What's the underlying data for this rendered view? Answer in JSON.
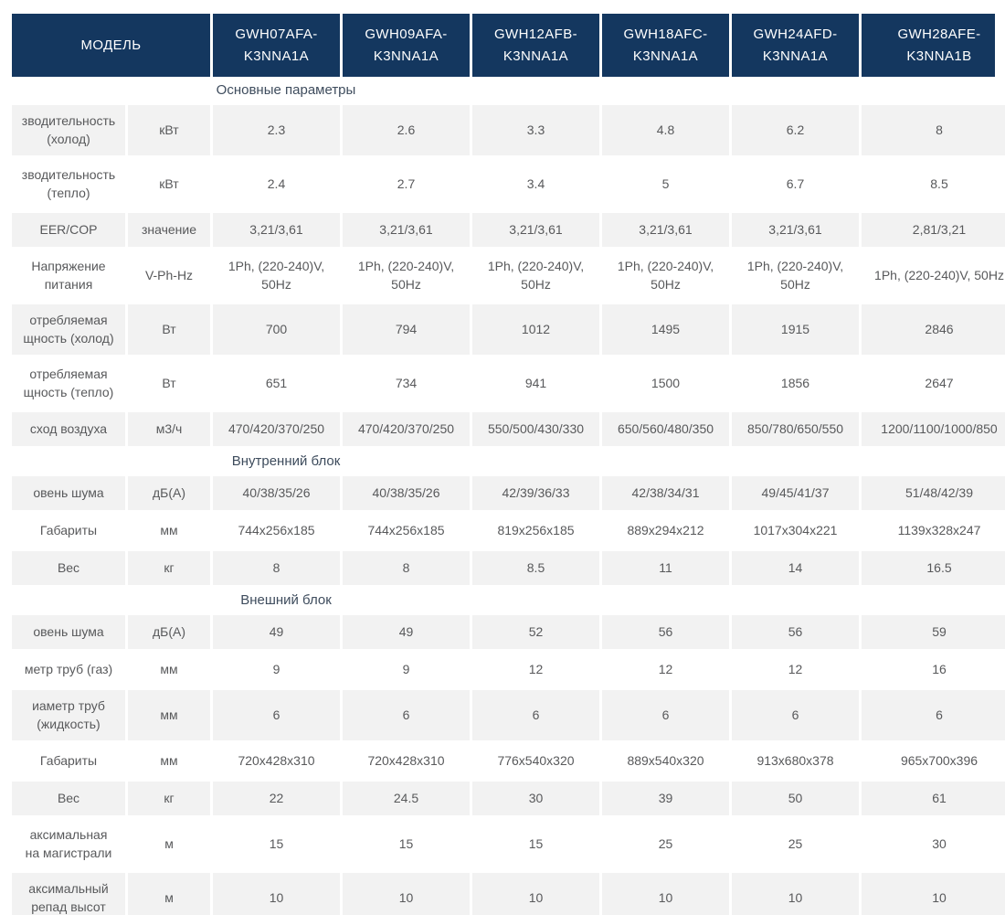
{
  "colors": {
    "header_bg": "#14375f",
    "header_text": "#ffffff",
    "row_shade": "#f2f2f2",
    "body_text": "#58595b",
    "section_text": "#3e4c5d"
  },
  "table": {
    "header": {
      "model_label": "МОДЕЛЬ",
      "models": [
        "GWH07AFA-\nK3NNA1A",
        "GWH09AFA-\nK3NNA1A",
        "GWH12AFB-\nK3NNA1A",
        "GWH18AFC-\nK3NNA1A",
        "GWH24AFD-\nK3NNA1A",
        "GWH28AFE-\nK3NNA1B"
      ]
    },
    "rows": [
      {
        "type": "section",
        "label": "Основные параметры"
      },
      {
        "type": "spec",
        "label": "зводительность\n(холод)",
        "unit": "кВт",
        "shaded": true,
        "two_line": true,
        "values": [
          "2.3",
          "2.6",
          "3.3",
          "4.8",
          "6.2",
          "8"
        ]
      },
      {
        "type": "spec",
        "label": "зводительность\n(тепло)",
        "unit": "кВт",
        "shaded": false,
        "two_line": true,
        "values": [
          "2.4",
          "2.7",
          "3.4",
          "5",
          "6.7",
          "8.5"
        ]
      },
      {
        "type": "spec",
        "label": "EER/COP",
        "unit": "значение",
        "shaded": true,
        "two_line": false,
        "values": [
          "3,21/3,61",
          "3,21/3,61",
          "3,21/3,61",
          "3,21/3,61",
          "3,21/3,61",
          "2,81/3,21"
        ]
      },
      {
        "type": "spec",
        "label": "Напряжение\nпитания",
        "unit": "V-Ph-Hz",
        "shaded": false,
        "two_line": true,
        "values": [
          "1Ph, (220-240)V, 50Hz",
          "1Ph, (220-240)V, 50Hz",
          "1Ph, (220-240)V, 50Hz",
          "1Ph, (220-240)V, 50Hz",
          "1Ph, (220-240)V, 50Hz",
          "1Ph, (220-240)V, 50Hz"
        ]
      },
      {
        "type": "spec",
        "label": "отребляемая\nщность (холод)",
        "unit": "Вт",
        "shaded": true,
        "two_line": true,
        "values": [
          "700",
          "794",
          "1012",
          "1495",
          "1915",
          "2846"
        ]
      },
      {
        "type": "spec",
        "label": "отребляемая\nщность (тепло)",
        "unit": "Вт",
        "shaded": false,
        "two_line": true,
        "values": [
          "651",
          "734",
          "941",
          "1500",
          "1856",
          "2647"
        ]
      },
      {
        "type": "spec",
        "label": "сход воздуха",
        "unit": "м3/ч",
        "shaded": true,
        "two_line": false,
        "values": [
          "470/420/370/250",
          "470/420/370/250",
          "550/500/430/330",
          "650/560/480/350",
          "850/780/650/550",
          "1200/1100/1000/850"
        ]
      },
      {
        "type": "section",
        "label": "Внутренний блок"
      },
      {
        "type": "spec",
        "label": "овень шума",
        "unit": "дБ(А)",
        "shaded": true,
        "two_line": false,
        "values": [
          "40/38/35/26",
          "40/38/35/26",
          "42/39/36/33",
          "42/38/34/31",
          "49/45/41/37",
          "51/48/42/39"
        ]
      },
      {
        "type": "spec",
        "label": "Габариты",
        "unit": "мм",
        "shaded": false,
        "two_line": false,
        "values": [
          "744x256x185",
          "744x256x185",
          "819x256x185",
          "889x294x212",
          "1017x304x221",
          "1139x328x247"
        ]
      },
      {
        "type": "spec",
        "label": "Вес",
        "unit": "кг",
        "shaded": true,
        "two_line": false,
        "values": [
          "8",
          "8",
          "8.5",
          "11",
          "14",
          "16.5"
        ]
      },
      {
        "type": "section",
        "label": "Внешний блок"
      },
      {
        "type": "spec",
        "label": "овень шума",
        "unit": "дБ(А)",
        "shaded": true,
        "two_line": false,
        "values": [
          "49",
          "49",
          "52",
          "56",
          "56",
          "59"
        ]
      },
      {
        "type": "spec",
        "label": "метр труб (газ)",
        "unit": "мм",
        "shaded": false,
        "two_line": false,
        "values": [
          "9",
          "9",
          "12",
          "12",
          "12",
          "16"
        ]
      },
      {
        "type": "spec",
        "label": "иаметр труб\n(жидкость)",
        "unit": "мм",
        "shaded": true,
        "two_line": true,
        "values": [
          "6",
          "6",
          "6",
          "6",
          "6",
          "6"
        ]
      },
      {
        "type": "spec",
        "label": "Габариты",
        "unit": "мм",
        "shaded": false,
        "two_line": false,
        "values": [
          "720x428x310",
          "720x428x310",
          "776x540x320",
          "889x540x320",
          "913x680x378",
          "965x700x396"
        ]
      },
      {
        "type": "spec",
        "label": "Вес",
        "unit": "кг",
        "shaded": true,
        "two_line": false,
        "values": [
          "22",
          "24.5",
          "30",
          "39",
          "50",
          "61"
        ]
      },
      {
        "type": "spec",
        "label": "аксимальная\nна магистрали",
        "unit": "м",
        "shaded": false,
        "two_line": true,
        "values": [
          "15",
          "15",
          "15",
          "25",
          "25",
          "30"
        ]
      },
      {
        "type": "spec",
        "label": "аксимальный\nрепад высот",
        "unit": "м",
        "shaded": true,
        "two_line": true,
        "values": [
          "10",
          "10",
          "10",
          "10",
          "10",
          "10"
        ]
      }
    ]
  }
}
